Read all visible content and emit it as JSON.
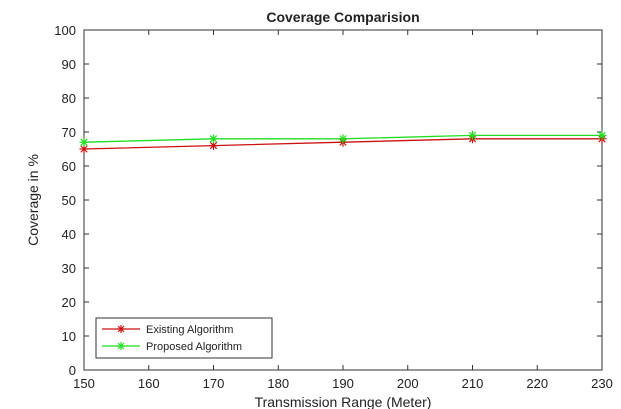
{
  "chart_data": {
    "type": "line",
    "title": "Coverage Comparision",
    "xlabel": "Transmission Range (Meter)",
    "ylabel": "Coverage in %",
    "xlim": [
      150,
      230
    ],
    "ylim": [
      0,
      100
    ],
    "xticks": [
      150,
      160,
      170,
      180,
      190,
      200,
      210,
      220,
      230
    ],
    "yticks": [
      0,
      10,
      20,
      30,
      40,
      50,
      60,
      70,
      80,
      90,
      100
    ],
    "grid": false,
    "legend_position": "bottom-left",
    "x": [
      150,
      170,
      190,
      210,
      230
    ],
    "series": [
      {
        "name": "Existing Algorithm",
        "color": "#cc1111",
        "marker": "asterisk",
        "values": [
          65,
          66,
          67,
          68,
          68
        ]
      },
      {
        "name": "Proposed Algorithm",
        "color": "#22dd22",
        "marker": "asterisk",
        "values": [
          67,
          68,
          68,
          69,
          69
        ]
      }
    ]
  }
}
